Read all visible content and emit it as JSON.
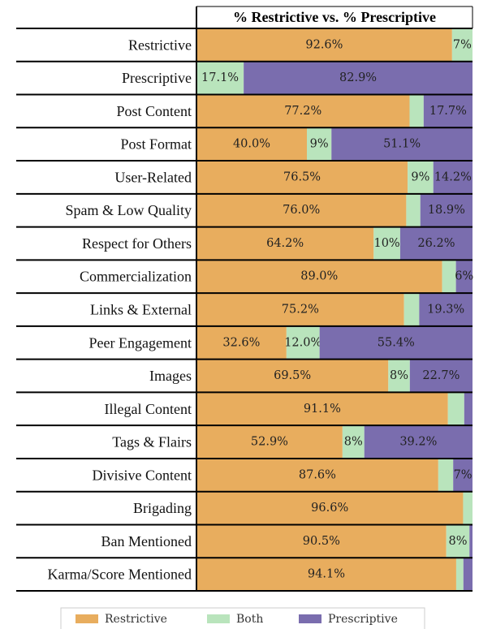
{
  "chart_data": {
    "type": "bar",
    "orientation": "horizontal",
    "stacked": true,
    "title": "% Restrictive vs. % Prescriptive",
    "categories": [
      "Restrictive",
      "Prescriptive",
      "Post Content",
      "Post Format",
      "User-Related",
      "Spam & Low Quality",
      "Respect for Others",
      "Commercialization",
      "Links & External",
      "Peer Engagement",
      "Images",
      "Illegal Content",
      "Tags & Flairs",
      "Divisive Content",
      "Brigading",
      "Ban Mentioned",
      "Karma/Score Mentioned"
    ],
    "xlim": [
      0,
      100
    ],
    "legend": "bottom",
    "series": [
      {
        "name": "Restrictive",
        "color": "#e8ad5e",
        "values": [
          92.6,
          0,
          77.2,
          40.0,
          76.5,
          76.0,
          64.2,
          89.0,
          75.2,
          32.6,
          69.5,
          91.1,
          52.9,
          87.6,
          96.6,
          90.5,
          94.1
        ],
        "value_labels": [
          "92.6%",
          null,
          "77.2%",
          "40.0%",
          "76.5%",
          "76.0%",
          "64.2%",
          "89.0%",
          "75.2%",
          "32.6%",
          "69.5%",
          "91.1%",
          "52.9%",
          "87.6%",
          "96.6%",
          "90.5%",
          "94.1%"
        ]
      },
      {
        "name": "Both",
        "color": "#b9e4bc",
        "values": [
          7.4,
          17.1,
          5.1,
          8.9,
          9.3,
          5.1,
          9.6,
          5.0,
          5.5,
          12.0,
          7.8,
          5.9,
          7.9,
          5.4,
          3.4,
          8.4,
          2.6
        ],
        "value_labels": [
          "7%",
          "17.1%",
          null,
          "9%",
          "9%",
          null,
          "10%",
          null,
          null,
          "12.0%",
          "8%",
          null,
          "8%",
          null,
          null,
          "8%",
          null
        ]
      },
      {
        "name": "Prescriptive",
        "color": "#7a6dae",
        "values": [
          0,
          82.9,
          17.7,
          51.1,
          14.2,
          18.9,
          26.2,
          6.0,
          19.3,
          55.4,
          22.7,
          3.0,
          39.2,
          7.0,
          0,
          1.1,
          3.3
        ],
        "value_labels": [
          null,
          "82.9%",
          "17.7%",
          "51.1%",
          "14.2%",
          "18.9%",
          "26.2%",
          "6%",
          "19.3%",
          "55.4%",
          "22.7%",
          null,
          "39.2%",
          "7%",
          null,
          null,
          null
        ]
      }
    ]
  }
}
